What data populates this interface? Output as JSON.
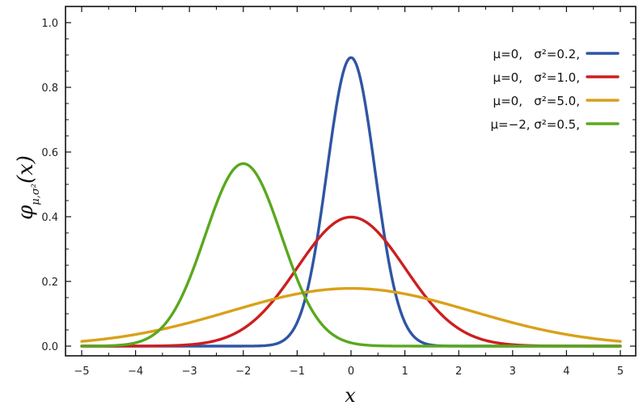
{
  "chart_data": {
    "type": "line",
    "title": "",
    "xlabel": "x",
    "ylabel": "φ_{μ,σ²}(x)",
    "ylabel_main": "φ",
    "ylabel_sub": "μ,σ²",
    "ylabel_arg": "(x)",
    "xlim": [
      -5,
      5
    ],
    "ylim": [
      0,
      1.0
    ],
    "xticks": [
      -5,
      -4,
      -3,
      -2,
      -1,
      0,
      1,
      2,
      3,
      4,
      5
    ],
    "yticks": [
      0.0,
      0.2,
      0.4,
      0.6,
      0.8,
      1.0
    ],
    "xtick_labels": [
      "−5",
      "−4",
      "−3",
      "−2",
      "−1",
      "0",
      "1",
      "2",
      "3",
      "4",
      "5"
    ],
    "ytick_labels": [
      "0.0",
      "0.2",
      "0.4",
      "0.6",
      "0.8",
      "1.0"
    ],
    "grid": false,
    "legend_placement": "top-right",
    "function": "normal probability density",
    "series": [
      {
        "name": "μ=0,   σ²=0.2,",
        "mu": 0,
        "sigma2": 0.2,
        "color": "#2f55a4"
      },
      {
        "name": "μ=0,   σ²=1.0,",
        "mu": 0,
        "sigma2": 1.0,
        "color": "#cc1f1f"
      },
      {
        "name": "μ=0,   σ²=5.0,",
        "mu": 0,
        "sigma2": 5.0,
        "color": "#d9a11a"
      },
      {
        "name": "μ=−2, σ²=0.5,",
        "mu": -2,
        "sigma2": 0.5,
        "color": "#5aa81e"
      }
    ]
  }
}
